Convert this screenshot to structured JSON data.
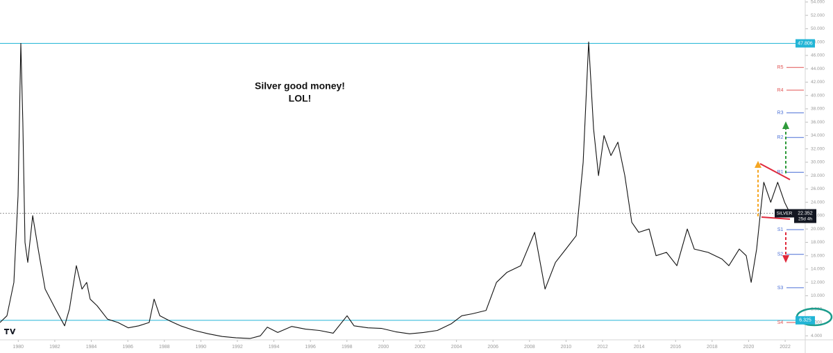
{
  "chart_data": {
    "type": "line",
    "annotation": [
      "Silver good money!",
      "LOL!"
    ],
    "x": [
      1979.0,
      1979.38,
      1979.76,
      1979.99,
      1980.14,
      1980.25,
      1980.37,
      1980.52,
      1980.79,
      1981.09,
      1981.47,
      1982.04,
      1982.54,
      1982.8,
      1983.18,
      1983.49,
      1983.75,
      1983.94,
      1984.32,
      1984.89,
      1985.46,
      1986.03,
      1986.6,
      1987.17,
      1987.44,
      1987.75,
      1988.32,
      1988.89,
      1989.65,
      1990.41,
      1991.17,
      1991.93,
      1992.69,
      1993.26,
      1993.64,
      1994.21,
      1994.97,
      1995.73,
      1996.49,
      1997.25,
      1998.01,
      1998.39,
      1999.15,
      1999.91,
      2000.67,
      2001.43,
      2002.19,
      2002.95,
      2003.71,
      2004.29,
      2004.86,
      2005.62,
      2006.19,
      2006.76,
      2007.52,
      2008.28,
      2008.85,
      2009.42,
      2009.99,
      2010.56,
      2010.94,
      2011.24,
      2011.51,
      2011.78,
      2012.08,
      2012.46,
      2012.84,
      2013.22,
      2013.6,
      2013.98,
      2014.55,
      2014.93,
      2015.5,
      2016.07,
      2016.64,
      2017.02,
      2017.78,
      2018.54,
      2018.92,
      2019.49,
      2019.87,
      2020.14,
      2020.44,
      2020.63,
      2020.83,
      2021.21,
      2021.59,
      2021.97,
      2022.27
    ],
    "series": [
      {
        "name": "SILVER",
        "color": "#111111",
        "values": [
          6,
          7,
          12,
          25,
          47.8,
          36,
          18,
          15,
          22,
          17,
          11,
          8,
          5.5,
          8,
          14.5,
          11,
          12,
          9.5,
          8.5,
          6.5,
          6,
          5.2,
          5.5,
          6,
          9.5,
          7,
          6.2,
          5.5,
          4.8,
          4.3,
          3.9,
          3.7,
          3.6,
          4.0,
          5.3,
          4.5,
          5.4,
          5.0,
          4.8,
          4.4,
          7.0,
          5.5,
          5.2,
          5.1,
          4.6,
          4.3,
          4.5,
          4.8,
          5.8,
          7,
          7.3,
          7.8,
          12,
          13.5,
          14.5,
          19.5,
          11,
          15,
          17,
          19,
          30,
          48,
          35,
          28,
          34,
          31,
          33,
          28,
          21,
          19.5,
          20,
          16,
          16.5,
          14.5,
          20,
          17,
          16.5,
          15.5,
          14.5,
          17,
          16,
          12,
          17,
          22,
          27,
          24,
          27,
          24,
          22.352
        ]
      }
    ],
    "last_price": 22.352,
    "countdown": "25d 4h",
    "hlines": [
      {
        "value": 47.806,
        "color": "#22b5d6"
      },
      {
        "value": 6.325,
        "color": "#22b5d6"
      }
    ],
    "levels": [
      {
        "label": "R5",
        "value": 44.2,
        "color": "#e05252"
      },
      {
        "label": "R4",
        "value": 40.8,
        "color": "#e05252"
      },
      {
        "label": "R3",
        "value": 37.4,
        "color": "#4a6fd6"
      },
      {
        "label": "R2",
        "value": 33.7,
        "color": "#4a6fd6"
      },
      {
        "label": "R1",
        "value": 28.5,
        "color": "#4a6fd6"
      },
      {
        "label": "S1",
        "value": 19.9,
        "color": "#4a6fd6"
      },
      {
        "label": "S2",
        "value": 16.2,
        "color": "#4a6fd6"
      },
      {
        "label": "S3",
        "value": 11.2,
        "color": "#4a6fd6"
      },
      {
        "label": "S4",
        "value": 6.0,
        "color": "#e05252"
      }
    ],
    "xlim": [
      1979,
      2023.1
    ],
    "xticks": [
      1980,
      1982,
      1984,
      1986,
      1988,
      1990,
      1992,
      1994,
      1996,
      1998,
      2000,
      2002,
      2004,
      2006,
      2008,
      2010,
      2012,
      2014,
      2016,
      2018,
      2020,
      2022
    ],
    "ylim": [
      3.4,
      54.3
    ],
    "yticks": [
      {
        "value": 54,
        "label": "54.000"
      },
      {
        "value": 52,
        "label": "52.000"
      },
      {
        "value": 50,
        "label": "50.000"
      },
      {
        "value": 48,
        "label": "48.000"
      },
      {
        "value": 46,
        "label": "46.000"
      },
      {
        "value": 44,
        "label": "44.000"
      },
      {
        "value": 42,
        "label": "42.000"
      },
      {
        "value": 40,
        "label": "40.000"
      },
      {
        "value": 38,
        "label": "38.000"
      },
      {
        "value": 36,
        "label": "36.000"
      },
      {
        "value": 34,
        "label": "34.000"
      },
      {
        "value": 32,
        "label": "32.000"
      },
      {
        "value": 30,
        "label": "30.000"
      },
      {
        "value": 28,
        "label": "28.000"
      },
      {
        "value": 26,
        "label": "26.000"
      },
      {
        "value": 24,
        "label": "24.000"
      },
      {
        "value": 22,
        "label": "22.000"
      },
      {
        "value": 20,
        "label": "20.000"
      },
      {
        "value": 18,
        "label": "18.000"
      },
      {
        "value": 16,
        "label": "16.000"
      },
      {
        "value": 14,
        "label": "14.000"
      },
      {
        "value": 12,
        "label": "12.000"
      },
      {
        "value": 10,
        "label": "10.000"
      },
      {
        "value": 8,
        "label": "8.000"
      },
      {
        "value": 6,
        "label": "6.000"
      },
      {
        "value": 4,
        "label": "4.000"
      }
    ]
  }
}
